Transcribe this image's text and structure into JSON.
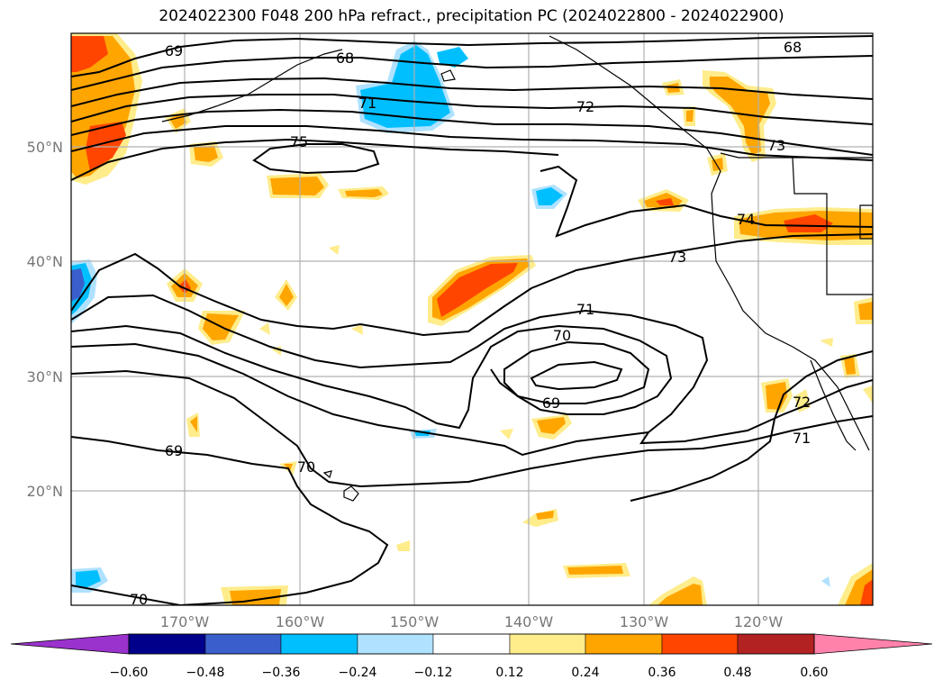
{
  "title": "2024022300 F048 200 hPa refract., precipitation PC (2024022800 - 2024022900)",
  "lat_labels": [
    "50°N",
    "40°N",
    "30°N",
    "20°N"
  ],
  "lon_labels": [
    "170°W",
    "160°W",
    "150°W",
    "140°W",
    "130°W",
    "120°W"
  ],
  "contour_labels": [
    "69",
    "68",
    "71",
    "72",
    "75",
    "68",
    "73",
    "74",
    "73",
    "71",
    "70",
    "69",
    "69",
    "70",
    "71",
    "70",
    "72"
  ],
  "colorbar": {
    "ticks": [
      "−0.60",
      "−0.48",
      "−0.36",
      "−0.24",
      "−0.12",
      "0.12",
      "0.24",
      "0.36",
      "0.48",
      "0.60"
    ],
    "colors": [
      "#9a32cd",
      "#00008b",
      "#3a5fcd",
      "#00bfff",
      "#b0e2ff",
      "#ffffff",
      "#ffec8b",
      "#ffa500",
      "#ff4500",
      "#b22222",
      "#ff82ab"
    ]
  },
  "shading_colors": {
    "pale_yellow": "#ffec8b",
    "orange": "#ffa500",
    "red_orange": "#ff4500",
    "light_blue": "#b0e2ff",
    "sky_blue": "#00bfff",
    "blue": "#3a5fcd",
    "purple": "#9a32cd"
  }
}
